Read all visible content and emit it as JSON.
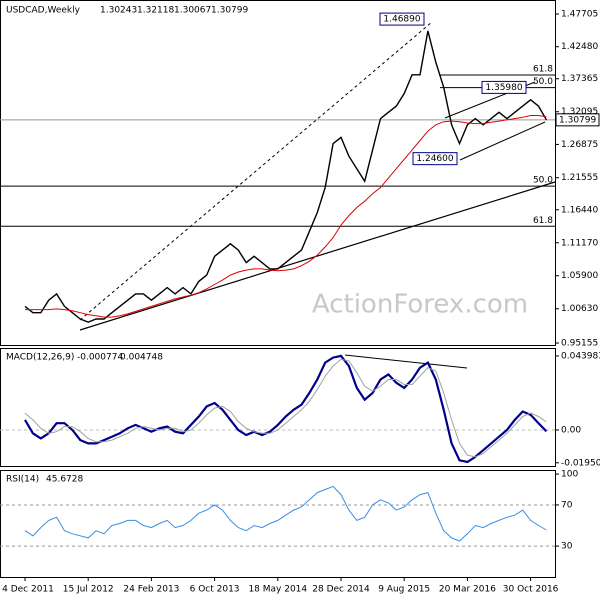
{
  "chart_data": [
    {
      "type": "line",
      "title": "USDCAD,Weekly",
      "open": 1.30243,
      "high": 1.32118,
      "low": 1.30067,
      "series": [
        {
          "color": "#000000",
          "values": [
            1.01,
            1.0,
            1.0,
            1.02,
            1.03,
            1.01,
            1.0,
            0.99,
            0.985,
            0.99,
            0.99,
            1.0,
            1.01,
            1.02,
            1.03,
            1.03,
            1.02,
            1.03,
            1.04,
            1.03,
            1.04,
            1.03,
            1.05,
            1.06,
            1.09,
            1.1,
            1.11,
            1.1,
            1.08,
            1.09,
            1.08,
            1.07,
            1.07,
            1.08,
            1.09,
            1.1,
            1.13,
            1.16,
            1.2,
            1.27,
            1.28,
            1.25,
            1.23,
            1.21,
            1.26,
            1.31,
            1.32,
            1.33,
            1.35,
            1.38,
            1.38,
            1.45,
            1.4,
            1.36,
            1.3,
            1.27,
            1.3,
            1.31,
            1.3,
            1.31,
            1.32,
            1.31,
            1.32,
            1.33,
            1.34,
            1.33,
            1.30799
          ]
        },
        {
          "color": "#e00000",
          "values": [
            1.005,
            1.005,
            1.005,
            1.005,
            1.006,
            1.005,
            1.003,
            1.0,
            0.997,
            0.995,
            0.993,
            0.993,
            0.995,
            0.998,
            1.002,
            1.006,
            1.01,
            1.014,
            1.018,
            1.022,
            1.025,
            1.028,
            1.032,
            1.038,
            1.045,
            1.052,
            1.06,
            1.065,
            1.068,
            1.07,
            1.07,
            1.068,
            1.067,
            1.068,
            1.07,
            1.075,
            1.082,
            1.092,
            1.105,
            1.12,
            1.14,
            1.155,
            1.168,
            1.178,
            1.19,
            1.2,
            1.215,
            1.23,
            1.245,
            1.26,
            1.275,
            1.29,
            1.3,
            1.305,
            1.306,
            1.305,
            1.303,
            1.302,
            1.302,
            1.304,
            1.306,
            1.308,
            1.31,
            1.312,
            1.315,
            1.315,
            1.313
          ]
        }
      ],
      "ylim": [
        0.9484,
        1.4962
      ],
      "yticks": [
        1.47705,
        {
          "value": 1.4248,
          "label": "1.42480"
        },
        1.37365,
        1.32095,
        1.26875,
        1.21555,
        {
          "value": 1.1644,
          "label": "1.16440"
        },
        {
          "value": 1.1117,
          "label": "1.11170"
        },
        {
          "value": 1.059,
          "label": "1.05900"
        },
        {
          "value": 1.0063,
          "label": "1.00630"
        },
        0.95155
      ],
      "annotations": [
        {
          "label": "1.46890",
          "value": 1.4689
        },
        {
          "label": "1.35980",
          "value": 1.3598
        },
        {
          "label": "1.24600",
          "value": 1.246
        }
      ],
      "levels": [
        {
          "label": "61.8",
          "value": 1.3796
        },
        {
          "label": "50.0",
          "value": 1.3595
        },
        {
          "label": "50.0",
          "value": 1.2022
        },
        {
          "label": "61.8",
          "value": 1.138
        }
      ],
      "watermark": "ActionForex.com"
    },
    {
      "type": "line",
      "title": "MACD(12,26,9)",
      "series": [
        {
          "color": "#00008b",
          "values": [
            0.006,
            -0.002,
            -0.005,
            -0.002,
            0.004,
            0.004,
            0.0,
            -0.006,
            -0.008,
            -0.008,
            -0.006,
            -0.004,
            -0.002,
            0.001,
            0.003,
            0.001,
            -0.001,
            0.001,
            0.002,
            -0.001,
            -0.002,
            0.003,
            0.008,
            0.014,
            0.016,
            0.012,
            0.006,
            0.0,
            -0.003,
            -0.001,
            -0.003,
            -0.001,
            0.003,
            0.008,
            0.012,
            0.015,
            0.022,
            0.03,
            0.04,
            0.043,
            0.044,
            0.038,
            0.025,
            0.018,
            0.022,
            0.03,
            0.033,
            0.028,
            0.025,
            0.03,
            0.037,
            0.04,
            0.03,
            0.012,
            -0.008,
            -0.018,
            -0.019,
            -0.016,
            -0.012,
            -0.008,
            -0.004,
            0.0,
            0.006,
            0.011,
            0.009,
            0.004,
            -0.000774
          ]
        },
        {
          "color": "#a0a0a0",
          "values": [
            0.01,
            0.006,
            0.001,
            -0.002,
            -0.001,
            0.002,
            0.002,
            -0.001,
            -0.005,
            -0.007,
            -0.007,
            -0.006,
            -0.004,
            -0.002,
            0.001,
            0.002,
            0.001,
            0.0,
            0.001,
            0.001,
            -0.001,
            0.0,
            0.004,
            0.009,
            0.013,
            0.014,
            0.011,
            0.005,
            0.001,
            -0.001,
            -0.002,
            -0.002,
            0.0,
            0.004,
            0.008,
            0.012,
            0.017,
            0.024,
            0.032,
            0.038,
            0.042,
            0.041,
            0.034,
            0.026,
            0.023,
            0.026,
            0.03,
            0.03,
            0.027,
            0.027,
            0.032,
            0.037,
            0.035,
            0.022,
            0.006,
            -0.008,
            -0.015,
            -0.016,
            -0.014,
            -0.01,
            -0.006,
            -0.002,
            0.003,
            0.008,
            0.01,
            0.008,
            0.004748
          ]
        }
      ],
      "ylim": [
        -0.0214,
        0.0475
      ],
      "yticks": [
        0.043983,
        {
          "value": 0,
          "label": "0.00"
        },
        -0.019501
      ]
    },
    {
      "type": "line",
      "title": "RSI(14)",
      "series": [
        {
          "color": "#3a8ee6",
          "values": [
            45,
            40,
            48,
            55,
            58,
            45,
            42,
            40,
            38,
            45,
            42,
            50,
            52,
            55,
            55,
            50,
            48,
            52,
            55,
            48,
            50,
            55,
            62,
            65,
            70,
            65,
            55,
            48,
            45,
            50,
            48,
            52,
            55,
            60,
            65,
            68,
            75,
            82,
            85,
            88,
            80,
            65,
            55,
            58,
            70,
            75,
            72,
            65,
            68,
            75,
            80,
            82,
            62,
            45,
            38,
            35,
            42,
            50,
            48,
            52,
            55,
            58,
            60,
            65,
            55,
            50,
            45.6728
          ]
        }
      ],
      "ylim": [
        0,
        102
      ],
      "yticks": [
        100,
        70,
        30
      ],
      "categories": [
        "4 Dec 2011",
        null,
        null,
        null,
        null,
        null,
        null,
        null,
        "15 Jul 2012",
        null,
        null,
        null,
        null,
        null,
        null,
        null,
        "24 Feb 2013",
        null,
        null,
        null,
        null,
        null,
        null,
        null,
        "6 Oct 2013",
        null,
        null,
        null,
        null,
        null,
        null,
        null,
        "18 May 2014",
        null,
        null,
        null,
        null,
        null,
        null,
        null,
        "28 Dec 2014",
        null,
        null,
        null,
        null,
        null,
        null,
        null,
        "9 Aug 2015",
        null,
        null,
        null,
        null,
        null,
        null,
        null,
        "20 Mar 2016",
        null,
        null,
        null,
        null,
        null,
        null,
        null,
        "30 Oct 2016",
        null,
        null
      ]
    }
  ]
}
